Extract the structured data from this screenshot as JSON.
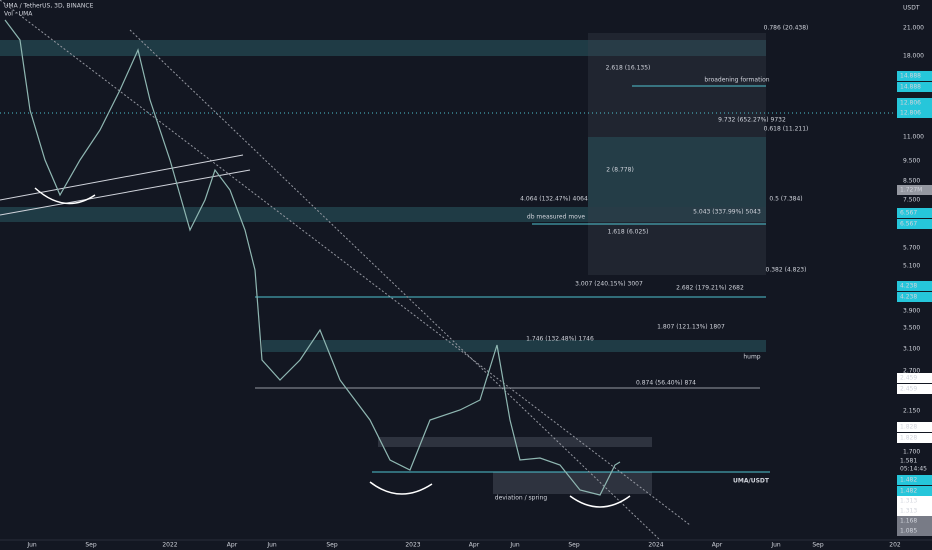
{
  "header": {
    "symbol": "UMA / TetherUS, 3D, BINANCE",
    "indicator": "Vol · UMA"
  },
  "price_axis": {
    "unit": "USDT",
    "labels": [
      "21.000",
      "18.000",
      "11.000",
      "9.500",
      "8.500",
      "7.500",
      "5.700",
      "5.100",
      "3.900",
      "3.500",
      "3.100",
      "2.700",
      "2.150",
      "1.700"
    ],
    "markers": [
      "14.888",
      "14.888",
      "12.806",
      "12.806",
      "1.727M",
      "6.567",
      "6.567",
      "4.238",
      "4.238",
      "2.459",
      "2.459",
      "1.828",
      "1.828",
      "1.581",
      "05:14:45",
      "1.482",
      "1.482",
      "1.313",
      "1.313",
      "1.168",
      "1.085"
    ]
  },
  "time_axis": [
    "Jun",
    "Sep",
    "2022",
    "Apr",
    "Jun",
    "Sep",
    "2023",
    "Apr",
    "Jun",
    "Sep",
    "2024",
    "Apr",
    "Jun",
    "Sep",
    "202"
  ],
  "annotations": [
    "broadening formation",
    "9.732 (652.27%) 9732",
    "0.618 (11.211)",
    "0.786 (20.438)",
    "2.618 (16.135)",
    "2 (8.778)",
    "0.5 (7.384)",
    "4.064 (132.47%) 4064",
    "5.043 (337.99%) 5043",
    "db measured move",
    "1.618 (6.025)",
    "0.382 (4.823)",
    "3.007 (240.15%) 3007",
    "2.682 (179.21%) 2682",
    "1.807 (121.13%) 1807",
    "1.746 (132.48%) 1746",
    "hump",
    "0.874 (56.40%) 874",
    "UMA/USDT",
    "deviation / spring"
  ]
}
